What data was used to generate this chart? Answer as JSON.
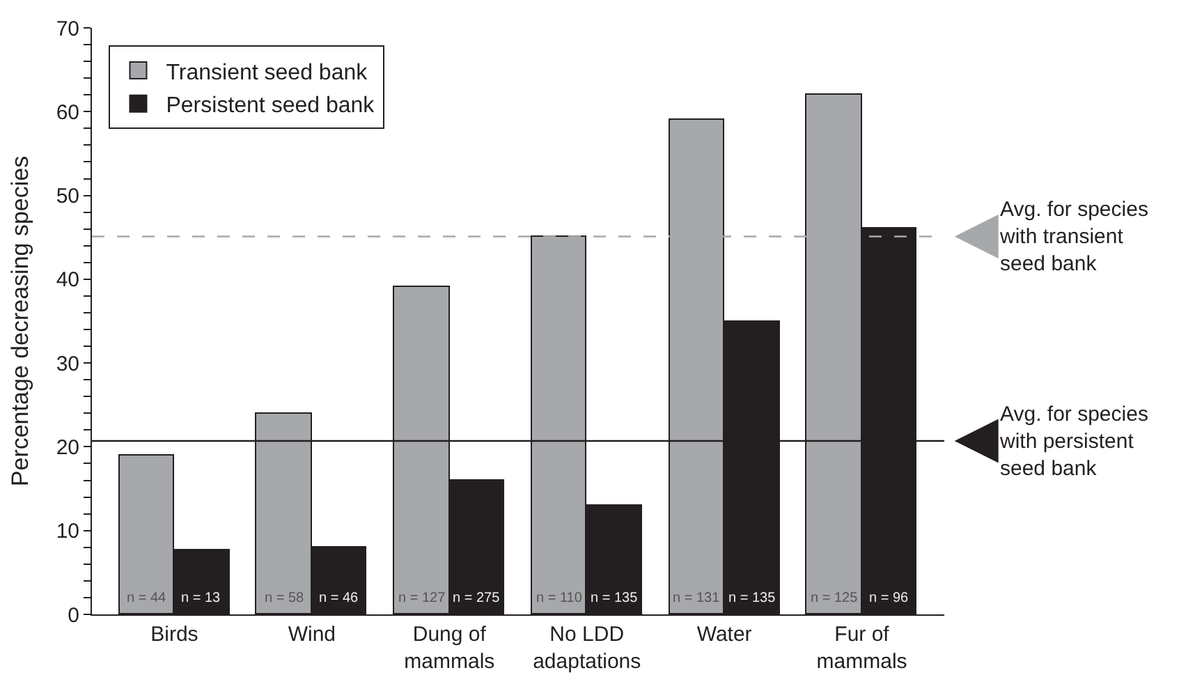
{
  "chart_data": {
    "type": "bar",
    "ylabel": "Percentage decreasing species",
    "categories": [
      "Birds",
      "Wind",
      "Dung of\nmammals",
      "No LDD\nadaptations",
      "Water",
      "Fur of\nmammals"
    ],
    "series": [
      {
        "name": "Transient seed bank",
        "color": "#a7a8ab",
        "values": [
          19,
          24,
          39,
          45,
          59,
          62
        ]
      },
      {
        "name": "Persistent seed bank",
        "color": "#231f20",
        "values": [
          7.7,
          8,
          16,
          13,
          35,
          46
        ]
      }
    ],
    "ylim": [
      0,
      70
    ],
    "yticks": [
      0,
      {
        "value": 2,
        "label": null
      },
      {
        "value": 4,
        "label": null
      },
      {
        "value": 6,
        "label": null
      },
      {
        "value": 8,
        "label": null
      },
      10,
      {
        "value": 12,
        "label": null
      },
      {
        "value": 14,
        "label": null
      },
      {
        "value": 16,
        "label": null
      },
      {
        "value": 18,
        "label": null
      },
      20,
      {
        "value": 22,
        "label": null
      },
      {
        "value": 24,
        "label": null
      },
      {
        "value": 26,
        "label": null
      },
      {
        "value": 28,
        "label": null
      },
      30,
      {
        "value": 32,
        "label": null
      },
      {
        "value": 34,
        "label": null
      },
      {
        "value": 36,
        "label": null
      },
      {
        "value": 38,
        "label": null
      },
      40,
      {
        "value": 42,
        "label": null
      },
      {
        "value": 44,
        "label": null
      },
      {
        "value": 46,
        "label": null
      },
      {
        "value": 48,
        "label": null
      },
      50,
      {
        "value": 52,
        "label": null
      },
      {
        "value": 54,
        "label": null
      },
      {
        "value": 56,
        "label": null
      },
      {
        "value": 58,
        "label": null
      },
      60,
      {
        "value": 62,
        "label": null
      },
      {
        "value": 64,
        "label": null
      },
      {
        "value": 66,
        "label": null
      },
      {
        "value": 68,
        "label": null
      },
      70
    ],
    "ref_lines": [
      {
        "axis": "y",
        "value": 45.1,
        "label": "Avg. for species\nwith transient\nseed bank",
        "color": "#a7a8ab",
        "line_style": "dashed"
      },
      {
        "axis": "y",
        "value": 20.7,
        "label": "Avg. for species\nwith persistent\nseed bank",
        "color": "#231f20",
        "line_style": "solid"
      }
    ],
    "annotations": [
      "n = 44",
      "n = 13",
      "n = 58",
      "n = 46",
      "n = 127",
      "n = 275",
      "n = 110",
      "n = 135",
      "n = 131",
      "n = 135",
      "n = 125",
      "n = 96"
    ],
    "legend": "top left"
  }
}
